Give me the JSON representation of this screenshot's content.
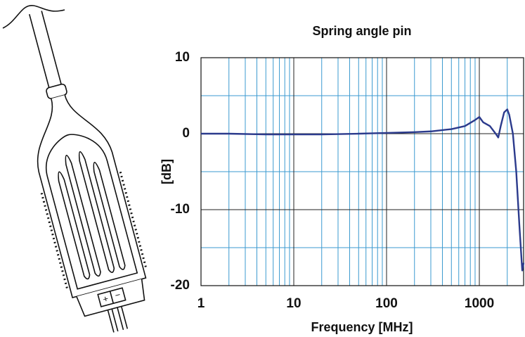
{
  "illustration": {
    "markings": [
      "+",
      "−"
    ]
  },
  "chart_data": {
    "type": "line",
    "title": "Spring angle pin",
    "x_label": "Frequency [MHz]",
    "y_label": "[dB]",
    "xscale": "log",
    "x": [
      1,
      2,
      5,
      10,
      20,
      50,
      100,
      200,
      300,
      500,
      700,
      900,
      1000,
      1100,
      1300,
      1500,
      1600,
      1700,
      1850,
      2000,
      2100,
      2300,
      2500,
      2700,
      2900,
      3000
    ],
    "series": [
      {
        "name": "Spring angle pin",
        "color": "#2b3a8c",
        "values": [
          0,
          0,
          -0.1,
          -0.1,
          -0.1,
          0,
          0.1,
          0.2,
          0.3,
          0.6,
          1.0,
          1.8,
          2.2,
          1.5,
          1.0,
          0,
          -0.5,
          1.0,
          2.8,
          3.2,
          2.5,
          0,
          -5,
          -12,
          -18,
          -17
        ]
      }
    ],
    "xlim": [
      1,
      3000
    ],
    "ylim": [
      -20,
      10
    ],
    "xticks": [
      1,
      10,
      100,
      1000
    ],
    "yticks": [
      -20,
      -10,
      0,
      10
    ],
    "minor_xticks": [
      2,
      3,
      4,
      5,
      6,
      7,
      8,
      9,
      20,
      30,
      40,
      50,
      60,
      70,
      80,
      90,
      200,
      300,
      400,
      500,
      600,
      700,
      800,
      900,
      2000,
      3000
    ],
    "minor_yticks": [
      -15,
      -5,
      5
    ],
    "grid": true,
    "major_grid_color": "#222222",
    "minor_grid_color": "#3b9ad0"
  }
}
